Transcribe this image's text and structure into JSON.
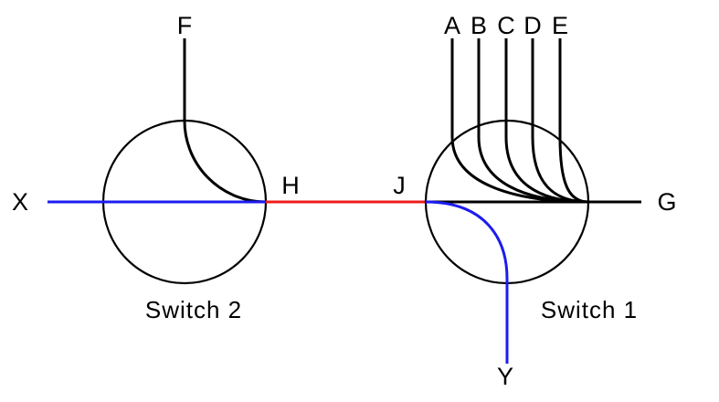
{
  "colors": {
    "black_path": "#000000",
    "blue_path": "#1c1cf0",
    "red_link": "#ee1c1c"
  },
  "switch2": {
    "caption": "Switch 2"
  },
  "switch1": {
    "caption": "Switch 1"
  },
  "endpoints": {
    "F": "F",
    "X": "X",
    "H": "H",
    "J": "J",
    "G": "G",
    "Y": "Y",
    "A": "A",
    "B": "B",
    "C": "C",
    "D": "D",
    "E": "E"
  }
}
